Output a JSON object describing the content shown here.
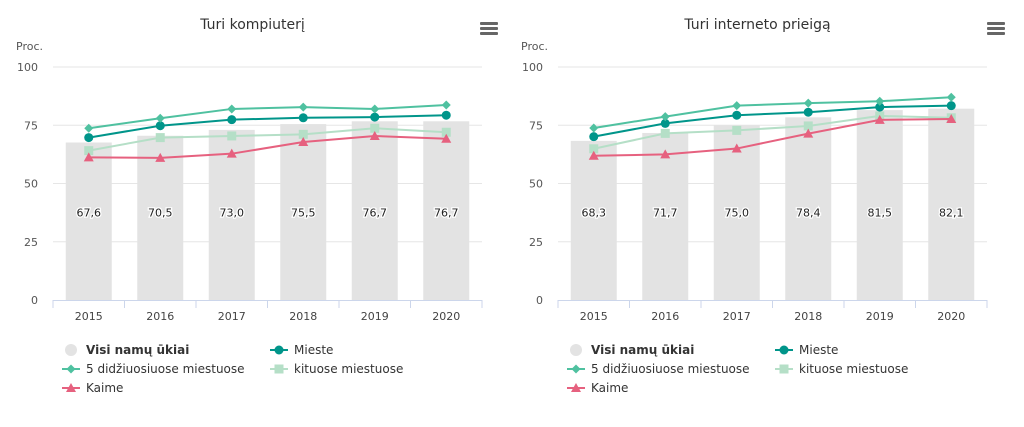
{
  "colors": {
    "bar": "#e3e3e3",
    "5didz": "#4fc1a0",
    "mieste": "#00958a",
    "kituose": "#b5dfc7",
    "kaime": "#e6617f"
  },
  "chart_data": [
    {
      "type": "bar+line",
      "title": "Turi kompiuterį",
      "ylabel": "Proc.",
      "ylim": [
        0,
        100
      ],
      "yticks": [
        0,
        25,
        50,
        75,
        100
      ],
      "grid": true,
      "legend": "bottom",
      "categories": [
        "2015",
        "2016",
        "2017",
        "2018",
        "2019",
        "2020"
      ],
      "series": [
        {
          "name": "Visi namų ūkiai",
          "kind": "bar",
          "values": [
            67.6,
            70.5,
            73.0,
            75.5,
            76.7,
            76.7
          ],
          "labels": [
            "67,6",
            "70,5",
            "73,0",
            "75,5",
            "76,7",
            "76,7"
          ]
        },
        {
          "name": "Mieste",
          "kind": "line",
          "marker": "circle",
          "values": [
            69.7,
            74.8,
            77.4,
            78.2,
            78.5,
            79.3
          ]
        },
        {
          "name": "5 didžiuosiuose miestuose",
          "kind": "line",
          "marker": "diamond",
          "values": [
            73.7,
            78.0,
            82.0,
            82.8,
            82.0,
            83.7
          ]
        },
        {
          "name": "kituose miestuose",
          "kind": "line",
          "marker": "square",
          "values": [
            64.1,
            69.7,
            70.4,
            71.1,
            73.7,
            72.0
          ]
        },
        {
          "name": "Kaime",
          "kind": "line",
          "marker": "triangle",
          "values": [
            61.2,
            61.0,
            62.8,
            67.8,
            70.4,
            69.2
          ]
        }
      ]
    },
    {
      "type": "bar+line",
      "title": "Turi interneto prieigą",
      "ylabel": "Proc.",
      "ylim": [
        0,
        100
      ],
      "yticks": [
        0,
        25,
        50,
        75,
        100
      ],
      "grid": true,
      "legend": "bottom",
      "categories": [
        "2015",
        "2016",
        "2017",
        "2018",
        "2019",
        "2020"
      ],
      "series": [
        {
          "name": "Visi namų ūkiai",
          "kind": "bar",
          "values": [
            68.3,
            71.7,
            75.0,
            78.4,
            81.5,
            82.1
          ],
          "labels": [
            "68,3",
            "71,7",
            "75,0",
            "78,4",
            "81,5",
            "82,1"
          ]
        },
        {
          "name": "Mieste",
          "kind": "line",
          "marker": "circle",
          "values": [
            70.1,
            75.8,
            79.3,
            80.6,
            82.8,
            83.4
          ]
        },
        {
          "name": "5 didžiuosiuose miestuose",
          "kind": "line",
          "marker": "diamond",
          "values": [
            73.8,
            78.7,
            83.4,
            84.5,
            85.3,
            87.0
          ]
        },
        {
          "name": "kituose miestuose",
          "kind": "line",
          "marker": "square",
          "values": [
            64.9,
            71.5,
            72.8,
            74.7,
            79.0,
            78.2
          ]
        },
        {
          "name": "Kaime",
          "kind": "line",
          "marker": "triangle",
          "values": [
            61.9,
            62.5,
            65.0,
            71.4,
            77.3,
            77.7
          ]
        }
      ]
    }
  ]
}
